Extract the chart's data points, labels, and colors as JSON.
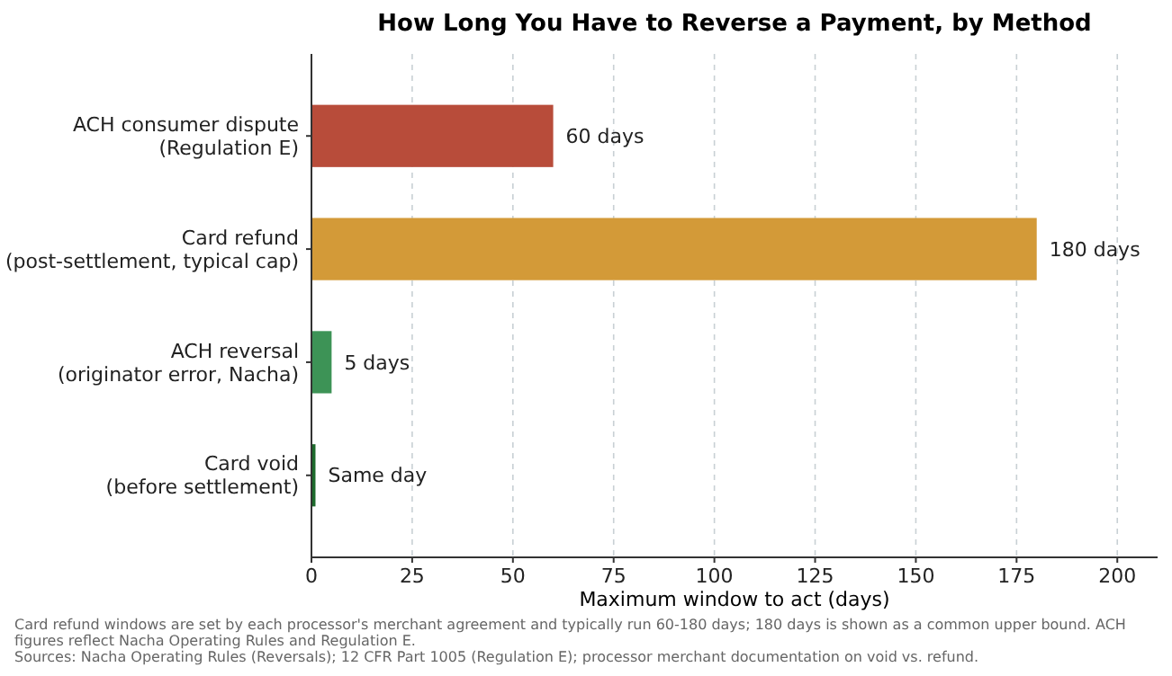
{
  "chart_data": {
    "type": "bar",
    "orientation": "horizontal",
    "title": "How Long You Have to Reverse a Payment, by Method",
    "xlabel": "Maximum window to act (days)",
    "categories": [
      "ACH consumer dispute\n(Regulation E)",
      "Card refund\n(post-settlement, typical cap)",
      "ACH reversal\n(originator error, Nacha)",
      "Card void\n(before settlement)"
    ],
    "values": [
      60,
      180,
      5,
      1
    ],
    "colors": [
      "#b84c3a",
      "#d39a38",
      "#3d9356",
      "#1d6b2c"
    ],
    "value_labels": [
      "60 days",
      "180 days",
      "5 days",
      "Same day"
    ],
    "xlim": [
      0,
      210
    ],
    "xticks": [
      0,
      25,
      50,
      75,
      100,
      125,
      150,
      175,
      200
    ],
    "grid": "x",
    "annotations": [
      "Card refund windows are set by each processor's merchant agreement and typically run 60-180 days; 180 days is shown as a common upper bound. ACH figures reflect Nacha Operating Rules and Regulation E.",
      "Sources: Nacha Operating Rules (Reversals); 12 CFR Part 1005 (Regulation E); processor merchant documentation on void vs. refund."
    ]
  }
}
